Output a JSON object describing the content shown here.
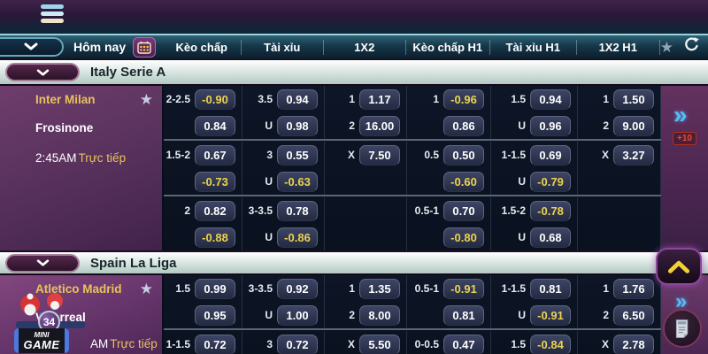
{
  "nav": {
    "today": "Hôm nay",
    "columns": [
      "Kèo chấp",
      "Tài xỉu",
      "1X2",
      "Kèo chấp H1",
      "Tài xỉu H1",
      "1X2 H1"
    ]
  },
  "sections": [
    {
      "league": "Italy Serie A",
      "match": {
        "team1": "Inter Milan",
        "team2": "Frosinone",
        "time": "2:45AM",
        "live": "Trực tiếp",
        "more": "+10",
        "group_breaks": [
          2,
          4
        ],
        "rows": [
          [
            [
              "2-2.5",
              "-0.90"
            ],
            [
              "3.5",
              "0.94"
            ],
            [
              "1",
              "1.17"
            ],
            [
              "1",
              "-0.96"
            ],
            [
              "1.5",
              "0.94"
            ],
            [
              "1",
              "1.50"
            ]
          ],
          [
            [
              "",
              "0.84"
            ],
            [
              "U",
              "0.98"
            ],
            [
              "2",
              "16.00"
            ],
            [
              "",
              "0.86"
            ],
            [
              "U",
              "0.96"
            ],
            [
              "2",
              "9.00"
            ]
          ],
          [
            [
              "1.5-2",
              "0.67"
            ],
            [
              "3",
              "0.55"
            ],
            [
              "X",
              "7.50"
            ],
            [
              "0.5",
              "0.50"
            ],
            [
              "1-1.5",
              "0.69"
            ],
            [
              "X",
              "3.27"
            ]
          ],
          [
            [
              "",
              "-0.73"
            ],
            [
              "U",
              "-0.63"
            ],
            null,
            [
              "",
              "-0.60"
            ],
            [
              "U",
              "-0.79"
            ],
            null
          ],
          [
            [
              "2",
              "0.82"
            ],
            [
              "3-3.5",
              "0.78"
            ],
            null,
            [
              "0.5-1",
              "0.70"
            ],
            [
              "1.5-2",
              "-0.78"
            ],
            null
          ],
          [
            [
              "",
              "-0.88"
            ],
            [
              "U",
              "-0.86"
            ],
            null,
            [
              "",
              "-0.80"
            ],
            [
              "U",
              "0.68"
            ],
            null
          ]
        ]
      }
    },
    {
      "league": "Spain La Liga",
      "match": {
        "team1": "Atletico Madrid",
        "team2": "Villarreal",
        "time": "AM",
        "live": "Trực tiếp",
        "group_breaks": [
          2
        ],
        "rows": [
          [
            [
              "1.5",
              "0.99"
            ],
            [
              "3-3.5",
              "0.92"
            ],
            [
              "1",
              "1.35"
            ],
            [
              "0.5-1",
              "-0.91"
            ],
            [
              "1-1.5",
              "0.81"
            ],
            [
              "1",
              "1.76"
            ]
          ],
          [
            [
              "",
              "0.95"
            ],
            [
              "U",
              "1.00"
            ],
            [
              "2",
              "8.00"
            ],
            [
              "",
              "0.81"
            ],
            [
              "U",
              "-0.91"
            ],
            [
              "2",
              "6.50"
            ]
          ],
          [
            [
              "1-1.5",
              "0.72"
            ],
            [
              "3",
              "0.72"
            ],
            [
              "X",
              "5.50"
            ],
            [
              "0-0.5",
              "0.47"
            ],
            [
              "1.5",
              "-0.84"
            ],
            [
              "X",
              "2.78"
            ]
          ]
        ]
      }
    }
  ],
  "floating": {
    "minigame_top": "MINI",
    "minigame_bottom": "GAME",
    "minigame_badge": "34"
  },
  "colors": {
    "team_accent": "#e9c25c",
    "negative_odds": "#ecd24e",
    "arrow_accent": "#55bdf8",
    "more_accent": "#f04a2c"
  }
}
